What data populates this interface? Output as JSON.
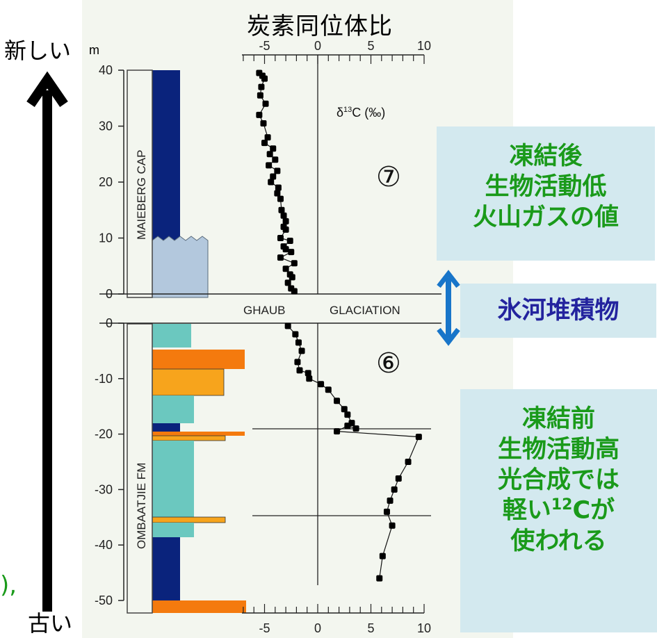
{
  "title": "炭素同位体比",
  "arrow_labels": {
    "newer": "新しい",
    "older": "古い"
  },
  "unit_m": "m",
  "isotope_label": "δ13C (‰)",
  "formation_labels": {
    "upper": "MAIEBERG CAP",
    "lower": "OMBAATJIE FM"
  },
  "glaciation_labels": {
    "left": "GHAUB",
    "right": "GLACIATION"
  },
  "circled": {
    "upper": "⑦",
    "lower": "⑥"
  },
  "fragment": "),",
  "upper_axis": {
    "ticks": [
      40,
      30,
      20,
      10,
      0
    ]
  },
  "lower_axis": {
    "ticks": [
      0,
      -10,
      -20,
      -30,
      -40,
      -50
    ]
  },
  "x_ticks": [
    "-5",
    "0",
    "5",
    "10"
  ],
  "boxes": {
    "after": {
      "line1": "凍結後",
      "line2": "生物活動低",
      "line3": "火山ガスの値"
    },
    "glacial": {
      "text": "氷河堆積物"
    },
    "before": {
      "line1": "凍結前",
      "line2": "生物活動高",
      "line3": "光合成では",
      "line4_a": "軽い",
      "line4_sup": "12",
      "line4_b": "Cが",
      "line5": "使われる"
    }
  },
  "colors": {
    "dolostone": "#0a237c",
    "pale": "#b3c8dd",
    "teal": "#6bc8bf",
    "orange": "#f7a41c",
    "orange_dark": "#f47a0e",
    "box_bg": "#d3e9ef",
    "green": "#1a9a1a",
    "navy_text": "#23239e",
    "arrow_blue": "#1875c9"
  },
  "chart_data": {
    "type": "scatter",
    "xlabel": "δ13C (‰)",
    "xlim": [
      -6,
      10
    ],
    "upper_section": {
      "name": "MAIEBERG CAP",
      "ylim": [
        0,
        40
      ],
      "x": [
        -5.5,
        -5.2,
        -5.0,
        -5.3,
        -5.4,
        -4.9,
        -5.5,
        -5.1,
        -4.7,
        -5.0,
        -4.2,
        -4.5,
        -4.0,
        -4.6,
        -3.8,
        -4.2,
        -4.4,
        -3.7,
        -3.8,
        -3.5,
        -3.4,
        -3.2,
        -3.0,
        -3.2,
        -3.0,
        -3.5,
        -2.6,
        -3.2,
        -3.0,
        -2.5,
        -3.5,
        -2.2,
        -3.0,
        -2.6,
        -2.4,
        -2.8,
        -2.5,
        -2.2
      ],
      "y": [
        39.5,
        39.0,
        38.5,
        37.0,
        35.5,
        34.0,
        32.0,
        30.5,
        28.0,
        27.0,
        26.0,
        25.0,
        24.0,
        23.0,
        22.0,
        21.0,
        20.0,
        19.0,
        18.0,
        17.0,
        15.0,
        14.0,
        13.0,
        12.0,
        11.5,
        10.0,
        9.5,
        8.5,
        8.0,
        7.5,
        6.5,
        5.5,
        4.5,
        3.5,
        3.0,
        2.0,
        1.0,
        0.5
      ]
    },
    "lower_section": {
      "name": "OMBAATJIE FM",
      "ylim": [
        -50,
        0
      ],
      "x": [
        -2.8,
        -2.1,
        -1.8,
        -1.5,
        -1.9,
        -1.7,
        -0.9,
        -0.8,
        0.3,
        1.0,
        1.8,
        2.5,
        2.8,
        3.2,
        3.6,
        2.8,
        1.8,
        9.5,
        8.5,
        7.6,
        7.2,
        6.8,
        6.5,
        7.0,
        6.1,
        5.8
      ],
      "y": [
        -0.5,
        -2.0,
        -3.5,
        -5.0,
        -7.0,
        -8.5,
        -9.0,
        -10.0,
        -11.0,
        -12.0,
        -14.0,
        -15.5,
        -16.5,
        -18.0,
        -19.0,
        -18.5,
        -19.5,
        -20.5,
        -25.0,
        -28.0,
        -30.0,
        -32.0,
        -34.0,
        -36.5,
        -42.0,
        -46.0
      ]
    },
    "grid": false
  }
}
